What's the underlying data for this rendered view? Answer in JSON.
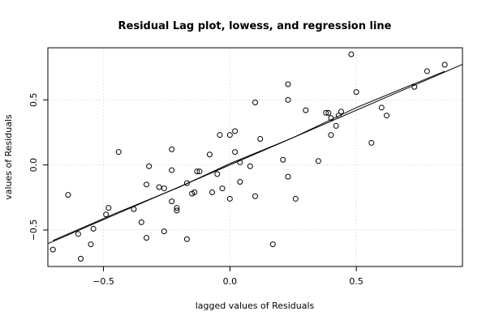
{
  "chart_data": {
    "type": "scatter",
    "title": "Residual Lag plot, lowess, and regression line",
    "xlabel": "lagged values of Residuals",
    "ylabel": "values of Residuals",
    "xlim": [
      -0.72,
      0.92
    ],
    "ylim": [
      -0.78,
      0.9
    ],
    "x_ticks": [
      -0.5,
      0.0,
      0.5
    ],
    "x_tick_labels": [
      "−0.5",
      "0.0",
      "0.5"
    ],
    "y_ticks": [
      -0.5,
      0.0,
      0.5
    ],
    "y_tick_labels": [
      "−0.5",
      "0.0",
      "0.5"
    ],
    "grid": "dotted, at x = -0.5, 0.0, 0.5 and y = -0.5, 0.0, 0.5",
    "points": [
      {
        "x": -0.7,
        "y": -0.65
      },
      {
        "x": -0.64,
        "y": -0.23
      },
      {
        "x": -0.6,
        "y": -0.53
      },
      {
        "x": -0.59,
        "y": -0.72
      },
      {
        "x": -0.55,
        "y": -0.61
      },
      {
        "x": -0.54,
        "y": -0.49
      },
      {
        "x": -0.49,
        "y": -0.38
      },
      {
        "x": -0.48,
        "y": -0.33
      },
      {
        "x": -0.44,
        "y": 0.1
      },
      {
        "x": -0.38,
        "y": -0.34
      },
      {
        "x": -0.35,
        "y": -0.44
      },
      {
        "x": -0.33,
        "y": -0.15
      },
      {
        "x": -0.33,
        "y": -0.56
      },
      {
        "x": -0.32,
        "y": -0.01
      },
      {
        "x": -0.28,
        "y": -0.17
      },
      {
        "x": -0.26,
        "y": -0.18
      },
      {
        "x": -0.26,
        "y": -0.51
      },
      {
        "x": -0.23,
        "y": 0.12
      },
      {
        "x": -0.23,
        "y": -0.04
      },
      {
        "x": -0.23,
        "y": -0.28
      },
      {
        "x": -0.21,
        "y": -0.33
      },
      {
        "x": -0.21,
        "y": -0.35
      },
      {
        "x": -0.17,
        "y": -0.14
      },
      {
        "x": -0.17,
        "y": -0.57
      },
      {
        "x": -0.15,
        "y": -0.22
      },
      {
        "x": -0.14,
        "y": -0.21
      },
      {
        "x": -0.13,
        "y": -0.05
      },
      {
        "x": -0.12,
        "y": -0.05
      },
      {
        "x": -0.08,
        "y": 0.08
      },
      {
        "x": -0.07,
        "y": -0.21
      },
      {
        "x": -0.05,
        "y": -0.07
      },
      {
        "x": -0.04,
        "y": 0.23
      },
      {
        "x": -0.03,
        "y": -0.18
      },
      {
        "x": 0.0,
        "y": 0.23
      },
      {
        "x": 0.0,
        "y": -0.26
      },
      {
        "x": 0.02,
        "y": 0.1
      },
      {
        "x": 0.02,
        "y": 0.26
      },
      {
        "x": 0.04,
        "y": -0.13
      },
      {
        "x": 0.04,
        "y": 0.02
      },
      {
        "x": 0.08,
        "y": -0.01
      },
      {
        "x": 0.1,
        "y": 0.48
      },
      {
        "x": 0.1,
        "y": -0.24
      },
      {
        "x": 0.12,
        "y": 0.2
      },
      {
        "x": 0.17,
        "y": -0.61
      },
      {
        "x": 0.21,
        "y": 0.04
      },
      {
        "x": 0.23,
        "y": 0.5
      },
      {
        "x": 0.23,
        "y": 0.62
      },
      {
        "x": 0.23,
        "y": -0.09
      },
      {
        "x": 0.26,
        "y": -0.26
      },
      {
        "x": 0.3,
        "y": 0.42
      },
      {
        "x": 0.35,
        "y": 0.03
      },
      {
        "x": 0.38,
        "y": 0.4
      },
      {
        "x": 0.39,
        "y": 0.4
      },
      {
        "x": 0.4,
        "y": 0.36
      },
      {
        "x": 0.4,
        "y": 0.23
      },
      {
        "x": 0.42,
        "y": 0.3
      },
      {
        "x": 0.43,
        "y": 0.38
      },
      {
        "x": 0.44,
        "y": 0.41
      },
      {
        "x": 0.48,
        "y": 0.85
      },
      {
        "x": 0.5,
        "y": 0.56
      },
      {
        "x": 0.56,
        "y": 0.17
      },
      {
        "x": 0.6,
        "y": 0.44
      },
      {
        "x": 0.62,
        "y": 0.38
      },
      {
        "x": 0.73,
        "y": 0.6
      },
      {
        "x": 0.78,
        "y": 0.72
      },
      {
        "x": 0.85,
        "y": 0.77
      }
    ],
    "regression_line": {
      "intercept": 0.0,
      "slope": 0.84
    },
    "lowess": [
      {
        "x": -0.7,
        "y": -0.58
      },
      {
        "x": -0.45,
        "y": -0.37
      },
      {
        "x": -0.2,
        "y": -0.17
      },
      {
        "x": 0.0,
        "y": 0.01
      },
      {
        "x": 0.25,
        "y": 0.21
      },
      {
        "x": 0.5,
        "y": 0.44
      },
      {
        "x": 0.85,
        "y": 0.72
      }
    ]
  }
}
